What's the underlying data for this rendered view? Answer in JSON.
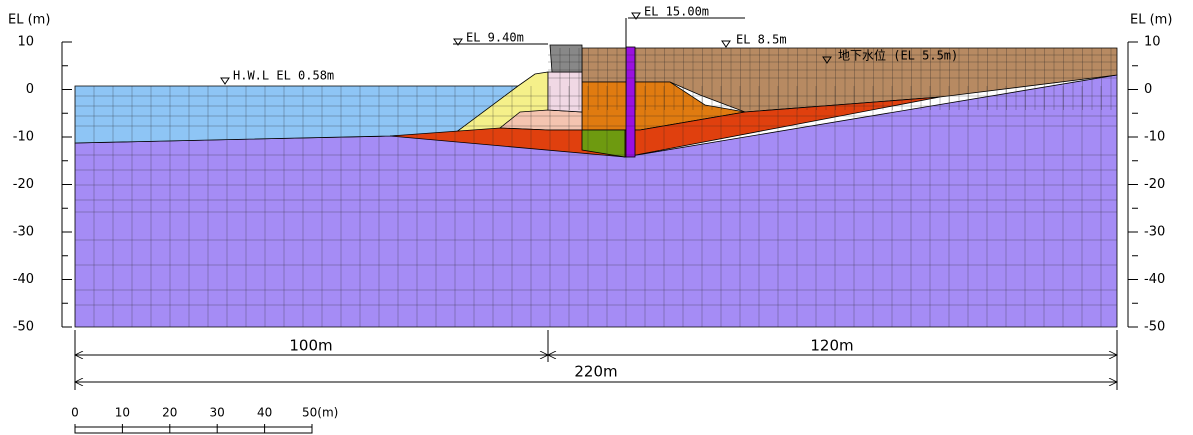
{
  "axis": {
    "left_label": "EL (m)",
    "right_label": "EL (m)",
    "ticks": [
      "10",
      "0",
      "-10",
      "-20",
      "-30",
      "-40",
      "-50"
    ]
  },
  "annotations": {
    "top": "EL 15.00m",
    "caisson": "EL 9.40m",
    "backfill": "EL 8.5m",
    "groundwater": "地下水位 (EL 5.5m)",
    "water": "H.W.L EL 0.58m"
  },
  "dimensions": {
    "left": "100m",
    "right": "120m",
    "total": "220m"
  },
  "scale": {
    "labels": [
      "0",
      "10",
      "20",
      "30",
      "40",
      "50(m)"
    ]
  }
}
